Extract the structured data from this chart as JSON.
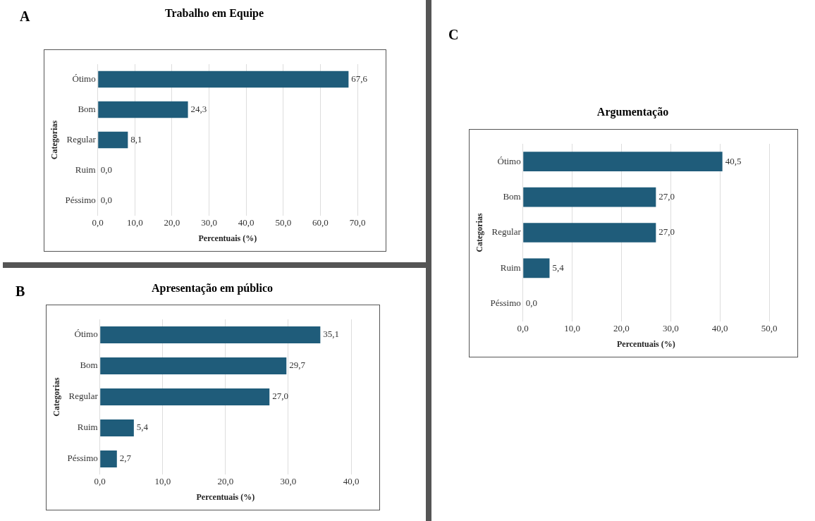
{
  "chart_data": [
    {
      "type": "bar",
      "orientation": "horizontal",
      "title": "Trabalho em Equipe",
      "xlabel": "Percentuais (%)",
      "ylabel": "Categorias",
      "annotations": [
        "A"
      ],
      "categories": [
        "Ótimo",
        "Bom",
        "Regular",
        "Ruim",
        "Péssimo"
      ],
      "values": [
        67.6,
        24.3,
        8.1,
        0.0,
        0.0
      ],
      "color": "#1f5c7a",
      "value_labels": [
        "67,6",
        "24,3",
        "8,1",
        "0,0",
        "0,0"
      ],
      "xlim": [
        0,
        70
      ],
      "xticks": [
        {
          "value": 0,
          "label": "0,0"
        },
        {
          "value": 10,
          "label": "10,0"
        },
        {
          "value": 20,
          "label": "20,0"
        },
        {
          "value": 30,
          "label": "30,0"
        },
        {
          "value": 40,
          "label": "40,0"
        },
        {
          "value": 50,
          "label": "50,0"
        },
        {
          "value": 60,
          "label": "60,0"
        },
        {
          "value": 70,
          "label": "70,0"
        }
      ],
      "grid": "x",
      "legend": false
    },
    {
      "type": "bar",
      "orientation": "horizontal",
      "title": "Apresentação em público",
      "xlabel": "Percentuais (%)",
      "ylabel": "Categorias",
      "annotations": [
        "B"
      ],
      "categories": [
        "Ótimo",
        "Bom",
        "Regular",
        "Ruim",
        "Péssimo"
      ],
      "values": [
        35.1,
        29.7,
        27.0,
        5.4,
        2.7
      ],
      "color": "#1f5c7a",
      "value_labels": [
        "35,1",
        "29,7",
        "27,0",
        "5,4",
        "2,7"
      ],
      "xlim": [
        0,
        40
      ],
      "xticks": [
        {
          "value": 0,
          "label": "0,0"
        },
        {
          "value": 10,
          "label": "10,0"
        },
        {
          "value": 20,
          "label": "20,0"
        },
        {
          "value": 30,
          "label": "30,0"
        },
        {
          "value": 40,
          "label": "40,0"
        }
      ],
      "grid": "x",
      "legend": false
    },
    {
      "type": "bar",
      "orientation": "horizontal",
      "title": "Argumentação",
      "xlabel": "Percentuais (%)",
      "ylabel": "Categorias",
      "annotations": [
        "C"
      ],
      "categories": [
        "Ótimo",
        "Bom",
        "Regular",
        "Ruim",
        "Péssimo"
      ],
      "values": [
        40.5,
        27.0,
        27.0,
        5.4,
        0.0
      ],
      "color": "#1f5c7a",
      "value_labels": [
        "40,5",
        "27,0",
        "27,0",
        "5,4",
        "0,0"
      ],
      "xlim": [
        0,
        50
      ],
      "xticks": [
        {
          "value": 0,
          "label": "0,0"
        },
        {
          "value": 10,
          "label": "10,0"
        },
        {
          "value": 20,
          "label": "20,0"
        },
        {
          "value": 30,
          "label": "30,0"
        },
        {
          "value": 40,
          "label": "40,0"
        },
        {
          "value": 50,
          "label": "50,0"
        }
      ],
      "grid": "x",
      "legend": false
    }
  ]
}
